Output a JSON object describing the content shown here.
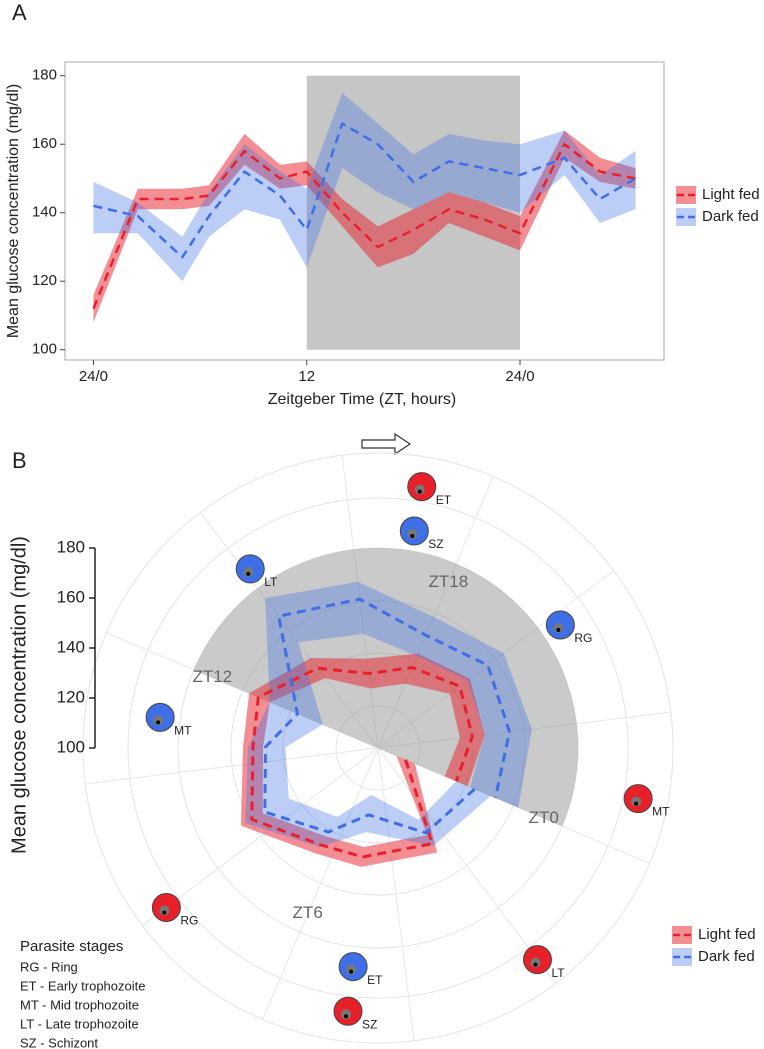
{
  "chart_data": [
    {
      "type": "line",
      "label": "A",
      "x_label": "Zeitgeber Time (ZT, hours)",
      "y_label": "Mean glucose concentration (mg/dl)",
      "x": [
        0,
        2.5,
        5,
        6.5,
        8.5,
        10.5,
        12,
        14,
        16,
        18,
        20,
        22,
        24,
        26.5,
        28.5,
        30.5
      ],
      "series": [
        {
          "name": "Light fed",
          "color": "#e8202a",
          "values": [
            112,
            144,
            144,
            145,
            158,
            150,
            152,
            140,
            130,
            135,
            141,
            138,
            134,
            160,
            152,
            150
          ],
          "lower": [
            108,
            141,
            141,
            142,
            154,
            147,
            148,
            136,
            124,
            128,
            137,
            133,
            129,
            156,
            149,
            147
          ],
          "upper": [
            116,
            147,
            147,
            148,
            163,
            154,
            155,
            144,
            136,
            141,
            146,
            143,
            139,
            164,
            156,
            153
          ]
        },
        {
          "name": "Dark fed",
          "color": "#3f6fe6",
          "values": [
            142,
            139,
            127,
            139,
            152,
            145,
            135,
            166,
            160,
            149,
            155,
            153,
            151,
            156,
            144,
            150
          ],
          "lower": [
            134,
            134,
            120,
            133,
            141,
            138,
            124,
            153,
            146,
            141,
            146,
            143,
            140,
            151,
            137,
            141
          ],
          "upper": [
            149,
            143,
            133,
            146,
            160,
            152,
            147,
            175,
            166,
            157,
            163,
            161,
            160,
            164,
            151,
            158
          ]
        }
      ],
      "shaded_range": [
        12,
        24
      ],
      "xlim": [
        -1.6,
        32.1
      ],
      "ylim": [
        97,
        184
      ],
      "xticks": [
        {
          "value": 0,
          "label": "24/0"
        },
        12,
        {
          "value": 24,
          "label": "24/0"
        }
      ],
      "yticks": [
        100,
        120,
        140,
        160,
        180
      ]
    },
    {
      "type": "polar",
      "label": "B",
      "y_label": "Mean glucose concentration (mg/dl)",
      "x": [
        0,
        2.5,
        5,
        6.5,
        8.5,
        10.5,
        12,
        14,
        16,
        18,
        20,
        22,
        24
      ],
      "series": [
        {
          "name": "Light fed",
          "color": "#e8202a",
          "values": [
            112,
            144,
            144,
            145,
            158,
            150,
            152,
            140,
            130,
            135,
            141,
            138,
            134
          ],
          "lower": [
            108,
            140,
            140,
            141,
            153,
            146,
            147,
            135,
            124,
            128,
            136,
            133,
            129
          ],
          "upper": [
            116,
            148,
            148,
            149,
            163,
            154,
            156,
            145,
            136,
            141,
            146,
            143,
            139
          ],
          "stages": [
            {
              "label": "ET",
              "x": 17.1
            },
            {
              "label": "MT",
              "x": 23.2
            },
            {
              "label": "LT",
              "x": 2.0
            },
            {
              "label": "SZ",
              "x": 4.9
            },
            {
              "label": "RG",
              "x": 8.0
            }
          ]
        },
        {
          "name": "Dark fed",
          "color": "#3f6fe6",
          "values": [
            142,
            139,
            127,
            139,
            152,
            145,
            135,
            166,
            160,
            149,
            155,
            153,
            151
          ],
          "lower": [
            134,
            133,
            119,
            132,
            141,
            137,
            124,
            153,
            146,
            140,
            145,
            143,
            140
          ],
          "upper": [
            149,
            145,
            134,
            146,
            161,
            152,
            147,
            175,
            167,
            157,
            163,
            162,
            161
          ],
          "stages": [
            {
              "label": "SZ",
              "x": 17.1
            },
            {
              "label": "RG",
              "x": 20.2
            },
            {
              "label": "ET",
              "x": 4.9
            },
            {
              "label": "MT",
              "x": 11.0
            },
            {
              "label": "LT",
              "x": 14.1
            }
          ]
        }
      ],
      "shaded_range": [
        12,
        24
      ],
      "xlim": [
        0,
        24
      ],
      "ylim": [
        100,
        180
      ],
      "xticks": [
        {
          "value": 0,
          "label": "ZT0"
        },
        {
          "value": 6,
          "label": "ZT6"
        },
        {
          "value": 12,
          "label": "ZT12"
        },
        {
          "value": 18,
          "label": "ZT18"
        }
      ],
      "yticks": [
        100,
        120,
        140,
        160,
        180
      ],
      "stage_legend": {
        "title": "Parasite stages",
        "items": [
          "RG - Ring",
          "ET - Early trophozoite",
          "MT - Mid trophozoite",
          "LT - Late trophozoite",
          "SZ - Schizont"
        ]
      }
    }
  ]
}
